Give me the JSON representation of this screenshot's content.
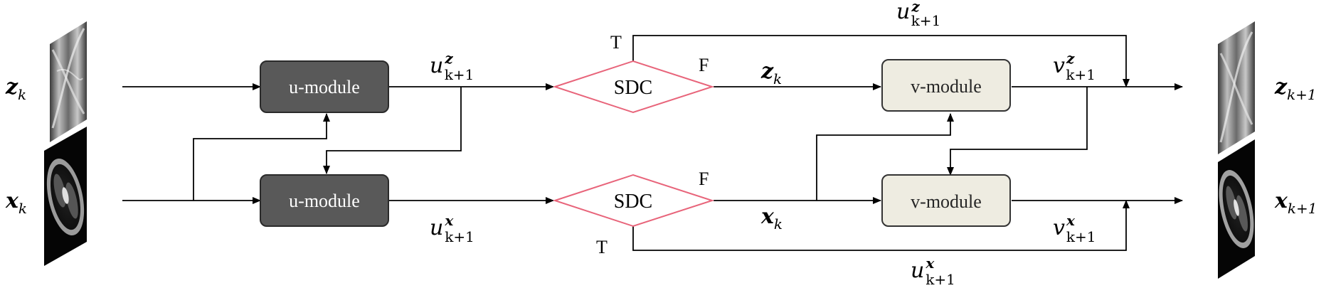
{
  "modules": {
    "u_top": "u-module",
    "u_bottom": "u-module",
    "v_top": "v-module",
    "v_bottom": "v-module"
  },
  "decisions": {
    "sdc_top": "SDC",
    "sdc_bottom": "SDC",
    "true_label": "T",
    "false_label": "F"
  },
  "variables": {
    "z_k": {
      "base": "z",
      "sub": "k"
    },
    "x_k": {
      "base": "x",
      "sub": "k"
    },
    "z_k1": {
      "base": "z",
      "sub": "k+1"
    },
    "x_k1": {
      "base": "x",
      "sub": "k+1"
    },
    "u_z": {
      "base": "u",
      "sup": "z",
      "sub": "k+1"
    },
    "u_x": {
      "base": "u",
      "sup": "x",
      "sub": "k+1"
    },
    "v_z": {
      "base": "v",
      "sup": "z",
      "sub": "k+1"
    },
    "v_x": {
      "base": "v",
      "sup": "x",
      "sub": "k+1"
    }
  },
  "colors": {
    "u_module_fill": "#595959",
    "u_module_text": "#ffffff",
    "v_module_fill": "#eeece1",
    "v_module_text": "#262626",
    "sdc_stroke": "#e8647a",
    "line": "#000000"
  }
}
